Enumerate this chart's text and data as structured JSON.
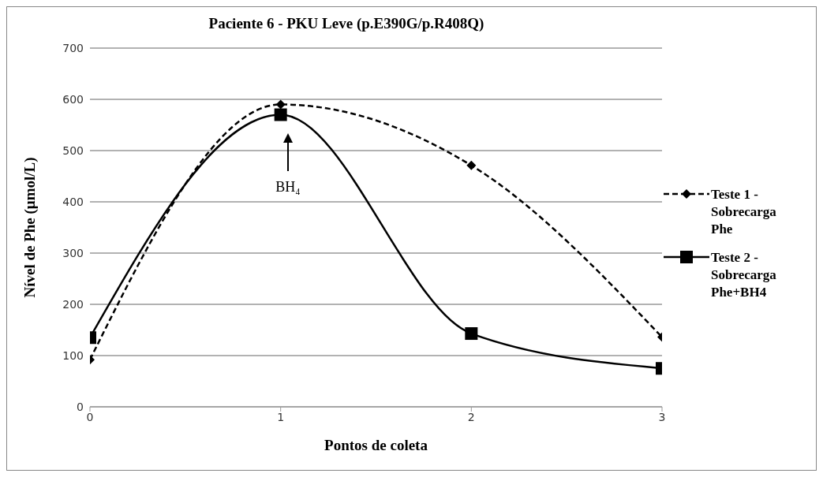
{
  "chart_data": {
    "type": "line",
    "title": "Paciente 6 - PKU Leve (p.E390G/p.R408Q)",
    "xlabel": "Pontos de coleta",
    "ylabel": "Nível de Phe (μmol/L)",
    "x": [
      0,
      1,
      2,
      3
    ],
    "series": [
      {
        "name": "Teste 1 - Sobrecarga Phe",
        "color": "#000000",
        "values": [
          92,
          590,
          471,
          136
        ],
        "marker": "diamond",
        "line_style": "dashed"
      },
      {
        "name": "Teste 2 - Sobrecarga Phe+BH4",
        "color": "#000000",
        "values": [
          135,
          570,
          143,
          75
        ],
        "marker": "square",
        "line_style": "solid"
      }
    ],
    "xlim": [
      0,
      3
    ],
    "xticks": [
      0,
      1,
      2,
      3
    ],
    "ylim": [
      0,
      700
    ],
    "yticks": [
      0,
      100,
      200,
      300,
      400,
      500,
      600,
      700
    ],
    "grid": "y",
    "legend": "right",
    "annotations": [
      "BH₄"
    ]
  }
}
